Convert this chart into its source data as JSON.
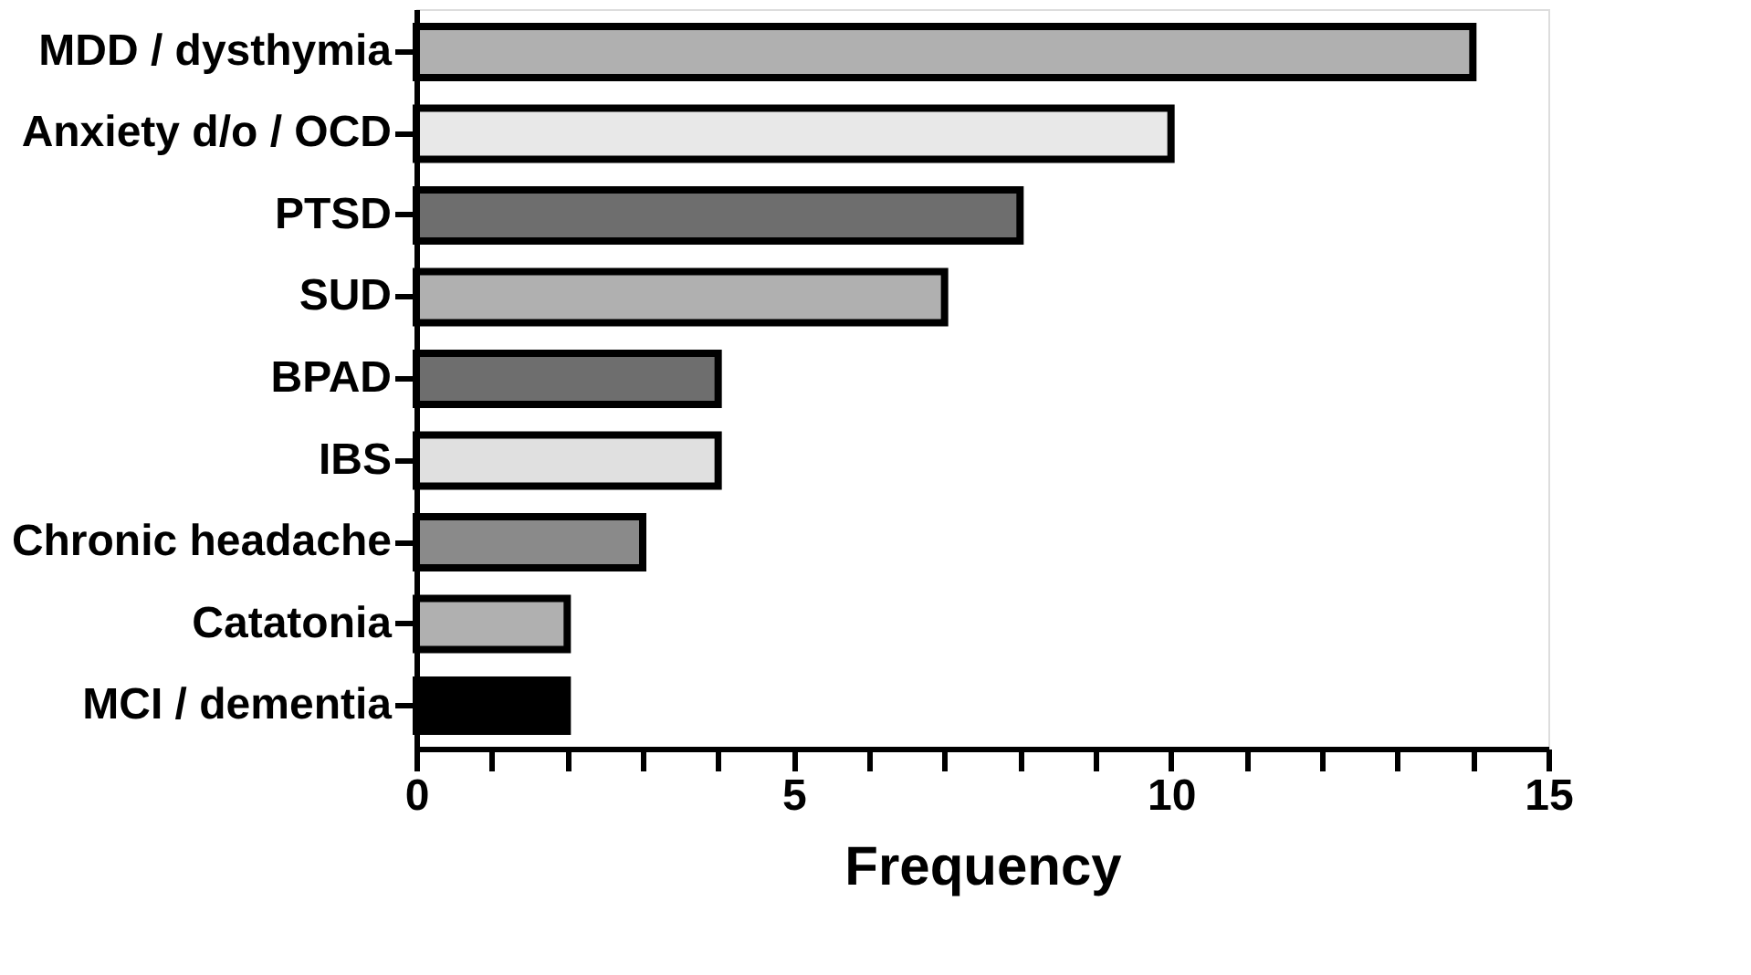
{
  "chart_data": {
    "type": "bar",
    "orientation": "horizontal",
    "xlabel": "Frequency",
    "categories": [
      "MDD / dysthymia",
      "Anxiety d/o / OCD",
      "PTSD",
      "SUD",
      "BPAD",
      "IBS",
      "Chronic headache",
      "Catatonia",
      "MCI / dementia"
    ],
    "values": [
      14,
      10,
      8,
      7,
      4,
      4,
      3,
      2,
      2
    ],
    "colors": [
      "#b0b0b0",
      "#e8e8e8",
      "#6e6e6e",
      "#b0b0b0",
      "#6e6e6e",
      "#e0e0e0",
      "#8a8a8a",
      "#b0b0b0",
      "#000000"
    ],
    "xlim": [
      0,
      15
    ],
    "xticks": [
      0,
      {
        "value": 1,
        "label": null
      },
      {
        "value": 2,
        "label": null
      },
      {
        "value": 3,
        "label": null
      },
      {
        "value": 4,
        "label": null
      },
      5,
      {
        "value": 6,
        "label": null
      },
      {
        "value": 7,
        "label": null
      },
      {
        "value": 8,
        "label": null
      },
      {
        "value": 9,
        "label": null
      },
      10,
      {
        "value": 11,
        "label": null
      },
      {
        "value": 12,
        "label": null
      },
      {
        "value": 13,
        "label": null
      },
      {
        "value": 14,
        "label": null
      },
      15
    ],
    "grid": false,
    "legend": false
  }
}
